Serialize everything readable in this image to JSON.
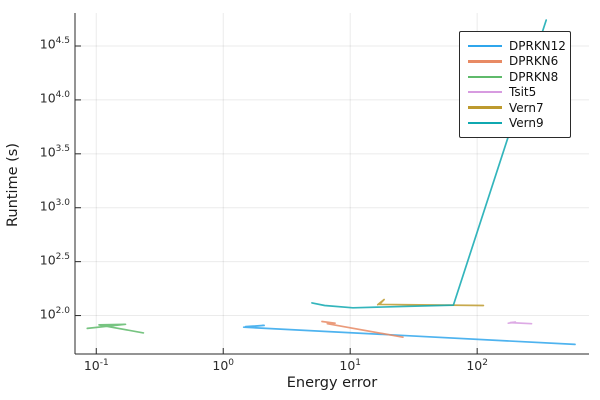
{
  "figure": {
    "background": "#ffffff",
    "axis_color": "#2a2a2a",
    "grid_color": "rgba(0,0,0,0.08)",
    "legend_border_color": "#2a2a2a"
  },
  "chart_data": {
    "type": "line",
    "title": "",
    "xlabel": "Energy error",
    "ylabel": "Runtime (s)",
    "xscale": "log10",
    "yscale": "log10",
    "grid": true,
    "legend_position": "top-right",
    "xlim_log10": [
      -1.1675,
      2.8808
    ],
    "ylim_log10": [
      1.6435,
      4.806
    ],
    "x_ticks": [
      {
        "value": 0.1,
        "base": "10",
        "exp": "-1"
      },
      {
        "value": 1,
        "base": "10",
        "exp": "0"
      },
      {
        "value": 10,
        "base": "10",
        "exp": "1"
      },
      {
        "value": 100,
        "base": "10",
        "exp": "2"
      }
    ],
    "y_ticks": [
      {
        "value": 100,
        "base": "10",
        "exp": "2.0"
      },
      {
        "value": 316.23,
        "base": "10",
        "exp": "2.5"
      },
      {
        "value": 1000,
        "base": "10",
        "exp": "3.0"
      },
      {
        "value": 3162.3,
        "base": "10",
        "exp": "3.5"
      },
      {
        "value": 10000,
        "base": "10",
        "exp": "4.0"
      },
      {
        "value": 31623,
        "base": "10",
        "exp": "4.5"
      }
    ],
    "series": [
      {
        "name": "DPRKN12",
        "color": "#2FA6EC",
        "points": [
          [
            1.5,
            79
          ],
          [
            2.1,
            81
          ],
          [
            1.45,
            78
          ],
          [
            590,
            54
          ]
        ]
      },
      {
        "name": "DPRKN6",
        "color": "#E88A64",
        "points": [
          [
            6.0,
            88
          ],
          [
            7.6,
            85
          ],
          [
            6.6,
            84
          ],
          [
            26,
            63
          ]
        ]
      },
      {
        "name": "DPRKN8",
        "color": "#5FBA6B",
        "points": [
          [
            0.085,
            76
          ],
          [
            0.17,
            83
          ],
          [
            0.105,
            82
          ],
          [
            0.235,
            69
          ]
        ]
      },
      {
        "name": "Tsit5",
        "color": "#D79BE0",
        "points": [
          [
            176,
            85
          ],
          [
            200,
            87
          ],
          [
            182,
            86
          ],
          [
            268,
            84
          ]
        ]
      },
      {
        "name": "Vern7",
        "color": "#BD9A2E",
        "points": [
          [
            16.5,
            126
          ],
          [
            18.5,
            141
          ],
          [
            17,
            127
          ],
          [
            112,
            124
          ]
        ]
      },
      {
        "name": "Vern9",
        "color": "#0FA8B0",
        "points": [
          [
            5.0,
            131
          ],
          [
            6.3,
            124
          ],
          [
            10.5,
            118
          ],
          [
            65,
            125
          ],
          [
            350,
            55000
          ]
        ]
      }
    ]
  }
}
